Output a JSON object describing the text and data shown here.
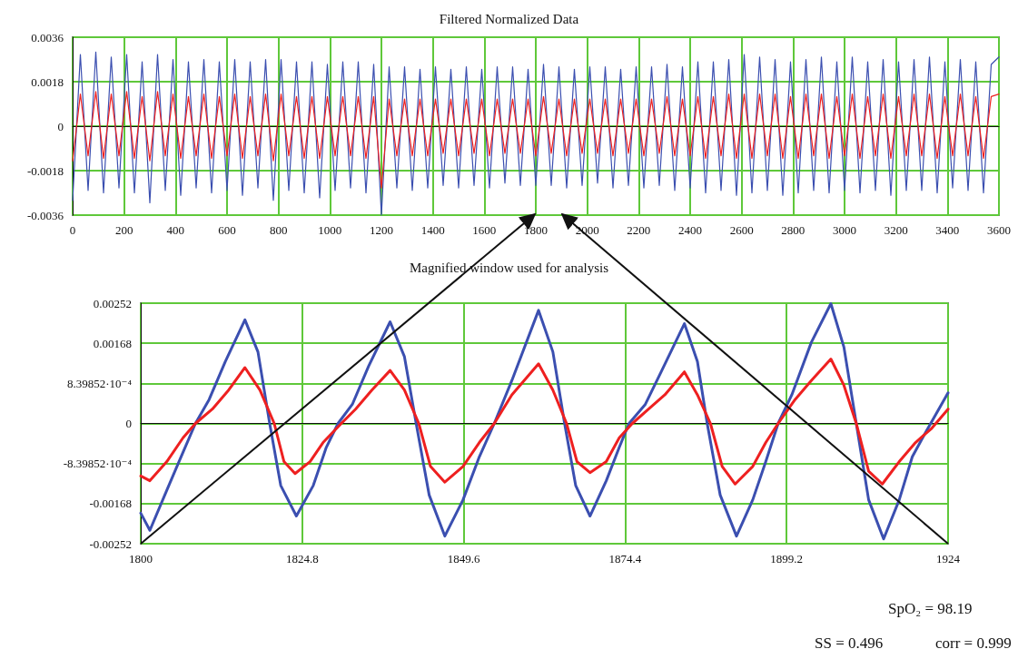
{
  "chart_data": [
    {
      "type": "line",
      "title": "Filtered Normalized Data",
      "x": [
        0,
        30,
        60,
        90,
        120,
        150,
        180,
        210,
        240,
        270,
        300,
        330,
        360,
        390,
        420,
        450,
        480,
        510,
        540,
        570,
        600,
        630,
        660,
        690,
        720,
        750,
        780,
        810,
        840,
        870,
        900,
        930,
        960,
        990,
        1020,
        1050,
        1080,
        1110,
        1140,
        1170,
        1200,
        1230,
        1260,
        1290,
        1320,
        1350,
        1380,
        1410,
        1440,
        1470,
        1500,
        1530,
        1560,
        1590,
        1620,
        1650,
        1680,
        1710,
        1740,
        1770,
        1800,
        1830,
        1860,
        1890,
        1920,
        1950,
        1980,
        2010,
        2040,
        2070,
        2100,
        2130,
        2160,
        2190,
        2220,
        2250,
        2280,
        2310,
        2340,
        2370,
        2400,
        2430,
        2460,
        2490,
        2520,
        2550,
        2580,
        2610,
        2640,
        2670,
        2700,
        2730,
        2760,
        2790,
        2820,
        2850,
        2880,
        2910,
        2940,
        2970,
        3000,
        3030,
        3060,
        3090,
        3120,
        3150,
        3180,
        3210,
        3240,
        3270,
        3300,
        3330,
        3360,
        3390,
        3420,
        3450,
        3480,
        3510,
        3540,
        3570,
        3600
      ],
      "series": [
        {
          "color": "#3b4fb0",
          "values": [
            -0.003,
            0.0029,
            -0.0026,
            0.003,
            -0.0027,
            0.0028,
            -0.0025,
            0.0029,
            -0.0027,
            0.0026,
            -0.0031,
            0.0029,
            -0.0026,
            0.0027,
            -0.0028,
            0.0026,
            -0.0025,
            0.0027,
            -0.0027,
            0.0026,
            -0.0026,
            0.0027,
            -0.0028,
            0.0026,
            -0.0025,
            0.0027,
            -0.003,
            0.0027,
            -0.0026,
            0.0026,
            -0.0027,
            0.0026,
            -0.0029,
            0.0025,
            -0.0026,
            0.0026,
            -0.0025,
            0.0026,
            -0.0027,
            0.0025,
            -0.0036,
            0.0024,
            -0.0025,
            0.0024,
            -0.0026,
            0.0023,
            -0.0025,
            0.0024,
            -0.0024,
            0.0023,
            -0.0025,
            0.0024,
            -0.0024,
            0.0023,
            -0.0025,
            0.0024,
            -0.0023,
            0.0024,
            -0.0024,
            0.0023,
            -0.0024,
            0.0025,
            -0.0024,
            0.0024,
            -0.0025,
            0.0023,
            -0.0024,
            0.0024,
            -0.0023,
            0.0024,
            -0.0025,
            0.0023,
            -0.0024,
            0.0024,
            -0.0025,
            0.0024,
            -0.0024,
            0.0025,
            -0.0026,
            0.0024,
            -0.0025,
            0.0026,
            -0.0027,
            0.0026,
            -0.0026,
            0.0027,
            -0.0028,
            0.0029,
            -0.0027,
            0.0028,
            -0.0026,
            0.0027,
            -0.0028,
            0.0026,
            -0.0027,
            0.0027,
            -0.0026,
            0.0028,
            -0.0027,
            0.0026,
            -0.0026,
            0.0028,
            -0.0027,
            0.0026,
            -0.0026,
            0.0027,
            -0.0028,
            0.0026,
            -0.0026,
            0.0027,
            -0.0026,
            0.0028,
            -0.0027,
            0.0026,
            -0.0025,
            0.0027,
            -0.0026,
            0.0026,
            -0.0027,
            0.0025,
            0.0028
          ]
        },
        {
          "color": "#ee2020",
          "values": [
            -0.0014,
            0.0013,
            -0.0012,
            0.0014,
            -0.0013,
            0.0013,
            -0.0012,
            0.0014,
            -0.0013,
            0.0012,
            -0.0014,
            0.0014,
            -0.0012,
            0.0013,
            -0.0013,
            0.0012,
            -0.0012,
            0.0013,
            -0.0013,
            0.0012,
            -0.0012,
            0.0013,
            -0.0013,
            0.0012,
            -0.0012,
            0.0013,
            -0.0014,
            0.0013,
            -0.0012,
            0.0012,
            -0.0013,
            0.0012,
            -0.0013,
            0.0012,
            -0.0012,
            0.0012,
            -0.0012,
            0.0012,
            -0.0013,
            0.0012,
            -0.0025,
            0.0011,
            -0.0012,
            0.0011,
            -0.0012,
            0.0011,
            -0.0012,
            0.0011,
            -0.0011,
            0.0011,
            -0.0012,
            0.0011,
            -0.0011,
            0.0011,
            -0.0012,
            0.0011,
            -0.0011,
            0.0011,
            -0.0011,
            0.0011,
            -0.0012,
            0.0012,
            -0.0011,
            0.0011,
            -0.0012,
            0.0011,
            -0.0011,
            0.0011,
            -0.0011,
            0.0011,
            -0.0012,
            0.0011,
            -0.0011,
            0.0011,
            -0.0012,
            0.0011,
            -0.0011,
            0.0012,
            -0.0012,
            0.0011,
            -0.0012,
            0.0012,
            -0.0013,
            0.0012,
            -0.0012,
            0.0013,
            -0.0013,
            0.0013,
            -0.0013,
            0.0013,
            -0.0012,
            0.0013,
            -0.0013,
            0.0012,
            -0.0013,
            0.0013,
            -0.0012,
            0.0013,
            -0.0013,
            0.0012,
            -0.0012,
            0.0013,
            -0.0013,
            0.0012,
            -0.0012,
            0.0013,
            -0.0013,
            0.0012,
            -0.0012,
            0.0013,
            -0.0012,
            0.0013,
            -0.0013,
            0.0012,
            -0.0012,
            0.0013,
            -0.0012,
            0.0012,
            -0.0013,
            0.0012,
            0.0013
          ]
        }
      ],
      "xlim": [
        0,
        3600
      ],
      "xticks": [
        0,
        200,
        400,
        600,
        800,
        1000,
        1200,
        1400,
        1600,
        1800,
        2000,
        2200,
        2400,
        2600,
        2800,
        3000,
        3200,
        3400,
        3600
      ],
      "ylim": [
        -0.0036,
        0.0036
      ],
      "yticks": [
        -0.0036,
        -0.0018,
        0,
        0.0018,
        0.0036
      ],
      "grid": true
    },
    {
      "type": "line",
      "title": "Magnified window used for analysis",
      "series": [
        {
          "color": "#3b4fb0",
          "x": [
            1800,
            1801.4,
            1804,
            1806.5,
            1808.4,
            1810.5,
            1813,
            1816,
            1818,
            1819.8,
            1821.5,
            1823.9,
            1826.5,
            1828.5,
            1830.3,
            1832.5,
            1835,
            1838.3,
            1840.5,
            1842.3,
            1844.3,
            1846.7,
            1849.5,
            1852,
            1854.3,
            1857,
            1861.1,
            1863.3,
            1865.1,
            1866.8,
            1869,
            1871.5,
            1873.5,
            1875,
            1877.5,
            1880,
            1883.5,
            1885.5,
            1887,
            1889,
            1891.5,
            1894,
            1896,
            1897.9,
            1900,
            1903,
            1906,
            1908,
            1909.9,
            1911.8,
            1914.1,
            1916.5,
            1918.5,
            1920.5,
            1924
          ],
          "values": [
            -0.00188,
            -0.00224,
            -0.0014,
            -0.0006,
            0,
            0.0005,
            0.0013,
            0.00217,
            0.0015,
            0,
            -0.0013,
            -0.00194,
            -0.0013,
            -0.0005,
            0,
            0.0004,
            0.0012,
            0.00213,
            0.0014,
            0,
            -0.0015,
            -0.00236,
            -0.0016,
            -0.0007,
            0,
            0.0009,
            0.00237,
            0.0015,
            0,
            -0.0013,
            -0.00194,
            -0.0012,
            -0.0005,
            0,
            0.0004,
            0.0011,
            0.00209,
            0.0013,
            0,
            -0.0015,
            -0.00236,
            -0.0016,
            -0.0008,
            0,
            0.0006,
            0.0017,
            0.00251,
            0.0016,
            0,
            -0.0016,
            -0.00242,
            -0.0016,
            -0.0007,
            -0.0002,
            0.00064
          ]
        },
        {
          "color": "#ee2020",
          "x": [
            1800,
            1801.4,
            1804,
            1806.5,
            1808.4,
            1811,
            1813.5,
            1816,
            1818.3,
            1820.5,
            1822,
            1823.7,
            1826,
            1828,
            1830.8,
            1833,
            1835.5,
            1838.3,
            1840.5,
            1842.7,
            1844.5,
            1846.7,
            1849.5,
            1852,
            1854.3,
            1857,
            1861.1,
            1863.3,
            1865.4,
            1867,
            1869,
            1871.5,
            1873.5,
            1875.5,
            1878,
            1880.5,
            1883.5,
            1885.5,
            1887.5,
            1889.3,
            1891.3,
            1894,
            1896,
            1897.9,
            1900.5,
            1903,
            1906,
            1908,
            1909.9,
            1911.8,
            1913.9,
            1916.5,
            1919,
            1921.5,
            1924
          ],
          "values": [
            -0.0011,
            -0.0012,
            -0.0008,
            -0.0003,
            0,
            0.0003,
            0.0007,
            0.00117,
            0.0007,
            0,
            -0.0008,
            -0.00105,
            -0.0008,
            -0.0004,
            0,
            0.0003,
            0.0007,
            0.00111,
            0.0007,
            0,
            -0.0009,
            -0.00123,
            -0.0009,
            -0.0004,
            0,
            0.0006,
            0.00125,
            0.0007,
            0,
            -0.0008,
            -0.00103,
            -0.0008,
            -0.0003,
            0,
            0.0003,
            0.0006,
            0.00108,
            0.0006,
            0,
            -0.0009,
            -0.00127,
            -0.0009,
            -0.0004,
            0,
            0.0005,
            0.0009,
            0.00135,
            0.0008,
            0,
            -0.001,
            -0.00127,
            -0.0008,
            -0.0004,
            -0.0001,
            0.0003
          ]
        }
      ],
      "xlim": [
        1800,
        1924
      ],
      "xticks": [
        1800,
        1824.8,
        1849.6,
        1874.4,
        1899.2,
        1924
      ],
      "ylim": [
        -0.00252,
        0.00252
      ],
      "yticks": [
        -0.00252,
        -0.00168,
        {
          "value": -0.000839852,
          "label": "-8.39852·10⁻⁴"
        },
        0,
        {
          "value": 0.000839852,
          "label": "8.39852·10⁻⁴"
        },
        0.00168,
        0.00252
      ],
      "grid": true,
      "annotations": [
        "SpO₂ = 98.19",
        "SS = 0.496",
        "corr = 0.999"
      ]
    }
  ]
}
